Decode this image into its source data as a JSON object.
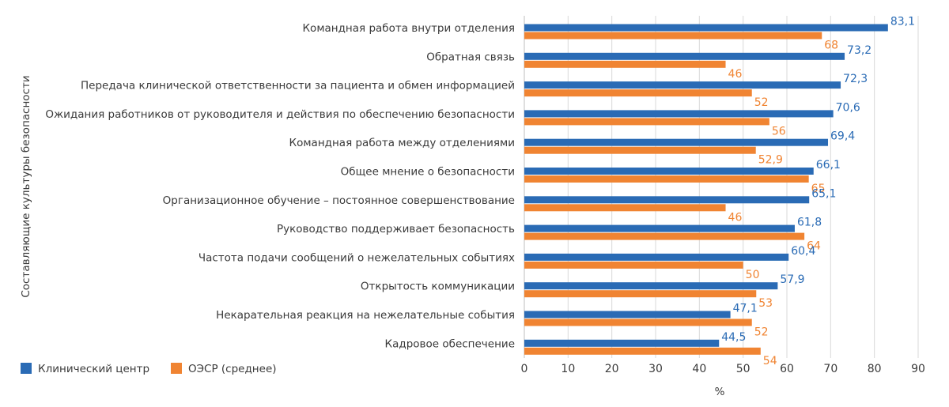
{
  "chart_data": {
    "type": "bar",
    "orientation": "horizontal",
    "categories": [
      "Командная работа внутри отделения",
      "Обратная связь",
      "Передача клинической ответственности за пациента и обмен информацией",
      "Ожидания работников от руководителя и действия по обеспечению безопасности",
      "Командная работа между отделениями",
      "Общее мнение о безопасности",
      "Организационное обучение – постоянное совершенствование",
      "Руководство поддерживает безопасность",
      "Частота подачи сообщений о нежелательных событиях",
      "Открытость коммуникации",
      "Некарательная реакция на нежелательные события",
      "Кадровое обеспечение"
    ],
    "series": [
      {
        "name": "Клинический центр",
        "color": "#2a6bb5",
        "values": [
          83.1,
          73.2,
          72.3,
          70.6,
          69.4,
          66.1,
          65.1,
          61.8,
          60.4,
          57.9,
          47.1,
          44.5
        ],
        "labels": [
          "83,1",
          "73,2",
          "72,3",
          "70,6",
          "69,4",
          "66,1",
          "65,1",
          "61,8",
          "60,4",
          "57,9",
          "47,1",
          "44,5"
        ]
      },
      {
        "name": "ОЭСР (среднее)",
        "color": "#f08432",
        "values": [
          68,
          46,
          52,
          56,
          52.9,
          65,
          46,
          64,
          50,
          53,
          52,
          54
        ],
        "labels": [
          "68",
          "46",
          "52",
          "56",
          "52,9",
          "65",
          "46",
          "64",
          "50",
          "53",
          "52",
          "54"
        ]
      }
    ],
    "xlabel": "%",
    "ylabel": "Составляющие культуры безопасности",
    "xlim": [
      0,
      90
    ],
    "xticks": [
      0,
      10,
      20,
      30,
      40,
      50,
      60,
      70,
      80,
      90
    ],
    "grid": "vertical",
    "legend": "bottom-left"
  }
}
